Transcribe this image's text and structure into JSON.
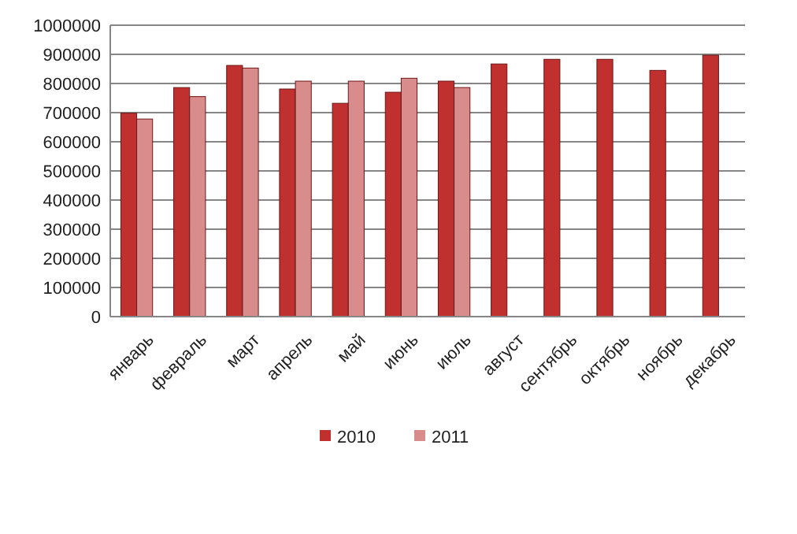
{
  "chart_data": {
    "type": "bar",
    "categories": [
      "январь",
      "февраль",
      "март",
      "апрель",
      "май",
      "июнь",
      "июль",
      "август",
      "сентябрь",
      "октябрь",
      "ноябрь",
      "декабрь"
    ],
    "series": [
      {
        "name": "2010",
        "color": "#c0302f",
        "values": [
          698000,
          786000,
          862000,
          781000,
          732000,
          770000,
          808000,
          867000,
          883000,
          883000,
          845000,
          897000
        ]
      },
      {
        "name": "2011",
        "color": "#d98c8c",
        "values": [
          678000,
          755000,
          853000,
          808000,
          808000,
          818000,
          786000,
          null,
          null,
          null,
          null,
          null
        ]
      }
    ],
    "ylim": [
      0,
      1000000
    ],
    "yticks": [
      0,
      100000,
      200000,
      300000,
      400000,
      500000,
      600000,
      700000,
      800000,
      900000,
      1000000
    ],
    "grid": "y",
    "legend": "bottom"
  }
}
